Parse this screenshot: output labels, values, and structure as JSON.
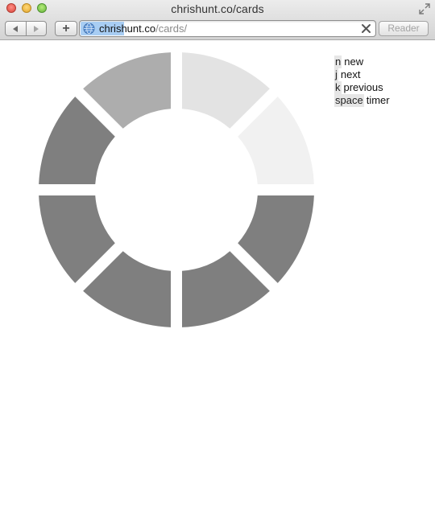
{
  "window": {
    "title": "chrishunt.co/cards"
  },
  "toolbar": {
    "add_label": "+",
    "url_host": "chrishunt.co",
    "url_path": "/cards/",
    "reader_label": "Reader"
  },
  "timer": {
    "segments": [
      {
        "shade": "#e3e3e3"
      },
      {
        "shade": "#f1f1f1"
      },
      {
        "shade": "#7f7f7f"
      },
      {
        "shade": "#7f7f7f"
      },
      {
        "shade": "#7f7f7f"
      },
      {
        "shade": "#7f7f7f"
      },
      {
        "shade": "#7f7f7f"
      },
      {
        "shade": "#adadad"
      }
    ]
  },
  "help": [
    {
      "key": "n",
      "action": "new"
    },
    {
      "key": "j",
      "action": "next"
    },
    {
      "key": "k",
      "action": "previous"
    },
    {
      "key": "space",
      "action": "timer"
    }
  ]
}
